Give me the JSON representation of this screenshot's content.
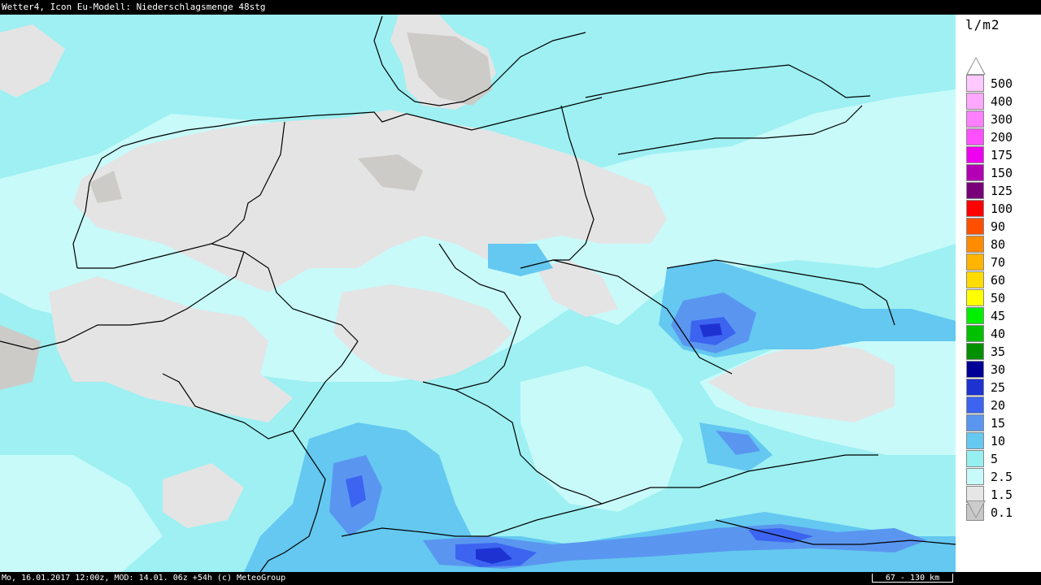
{
  "header": {
    "title": "Wetter4, Icon Eu-Modell: Niederschlagsmenge 48stg"
  },
  "footer": {
    "info": "Mo, 16.01.2017 12:00z, MOD: 14.01. 06z +54h (c) MeteoGroup",
    "scale": "67 - 130 km"
  },
  "legend": {
    "unit": "l/m2",
    "bins": [
      {
        "label": "500",
        "color": "#ffc8ff"
      },
      {
        "label": "400",
        "color": "#ffa8ff"
      },
      {
        "label": "300",
        "color": "#ff80ff"
      },
      {
        "label": "200",
        "color": "#ff50ff"
      },
      {
        "label": "175",
        "color": "#f000f0"
      },
      {
        "label": "150",
        "color": "#b400b4"
      },
      {
        "label": "125",
        "color": "#780078"
      },
      {
        "label": "100",
        "color": "#ff0000"
      },
      {
        "label": "90",
        "color": "#ff5000"
      },
      {
        "label": "80",
        "color": "#ff8c00"
      },
      {
        "label": "70",
        "color": "#ffb400"
      },
      {
        "label": "60",
        "color": "#ffdc00"
      },
      {
        "label": "50",
        "color": "#ffff00"
      },
      {
        "label": "45",
        "color": "#00f000"
      },
      {
        "label": "40",
        "color": "#00c000"
      },
      {
        "label": "35",
        "color": "#009000"
      },
      {
        "label": "30",
        "color": "#000096"
      },
      {
        "label": "25",
        "color": "#1e32d2"
      },
      {
        "label": "20",
        "color": "#3c64f0"
      },
      {
        "label": "15",
        "color": "#5a96f0"
      },
      {
        "label": "10",
        "color": "#64c8f0"
      },
      {
        "label": "5",
        "color": "#96f0f0"
      },
      {
        "label": "2.5",
        "color": "#c8fafa"
      },
      {
        "label": "1.5",
        "color": "#e6e6e6"
      },
      {
        "label": "0.1",
        "color": "#c8c8c8"
      }
    ]
  },
  "map": {
    "colors": {
      "dry": "#e4e4e4",
      "trace": "#cdcbc8",
      "light": "#c8fafa",
      "moderate": "#9ef0f2",
      "heavy": "#64c8f0",
      "very_heavy": "#5a96f0",
      "intense": "#3c64f0",
      "extreme": "#1e32d2",
      "border": "#000000"
    }
  }
}
